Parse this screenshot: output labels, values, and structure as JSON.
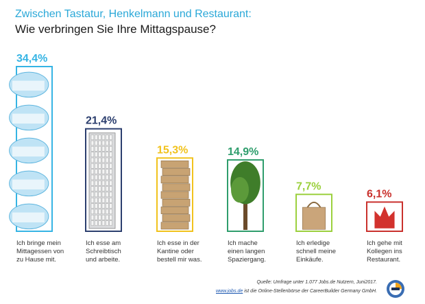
{
  "header": {
    "title": "Zwischen Tastatur, Henkelmann und Restaurant:",
    "subtitle": "Wie verbringen Sie Ihre Mittagspause?"
  },
  "chart_data": {
    "type": "bar",
    "ylim": [
      0,
      34.4
    ],
    "categories": [
      [
        "Ich bringe mein",
        "Mittagessen von",
        "zu Hause mit."
      ],
      [
        "Ich esse am",
        "Schreibtisch",
        "und arbeite."
      ],
      [
        "Ich esse in der",
        "Kantine oder",
        "bestell mir was."
      ],
      [
        "Ich mache",
        "einen langen",
        "Spaziergang."
      ],
      [
        "Ich erledige",
        "schnell meine",
        "Einkäufe."
      ],
      [
        "Ich gehe mit",
        "Kollegen ins",
        "Restaurant."
      ]
    ],
    "values": [
      34.4,
      21.4,
      15.3,
      14.9,
      7.7,
      6.1
    ],
    "labels": [
      "34,4%",
      "21,4%",
      "15,3%",
      "14,9%",
      "7,7%",
      "6,1%"
    ],
    "colors": [
      "#35b4e4",
      "#2b3e6e",
      "#f1c21c",
      "#2e9d6c",
      "#9bd03d",
      "#c9302c"
    ],
    "icons": [
      "food-containers-icon",
      "keyboard-icon",
      "pizza-boxes-icon",
      "tree-icon",
      "shopping-bag-icon",
      "restaurant-logo-icon"
    ]
  },
  "footer": {
    "source": "Quelle: Umfrage unter 1.077 Jobs.de Nutzern, Juni2017.",
    "link": "www.jobs.de",
    "link_suffix": " ist die Online-Stellenbörse der CareerBuilder Germany GmbH."
  }
}
